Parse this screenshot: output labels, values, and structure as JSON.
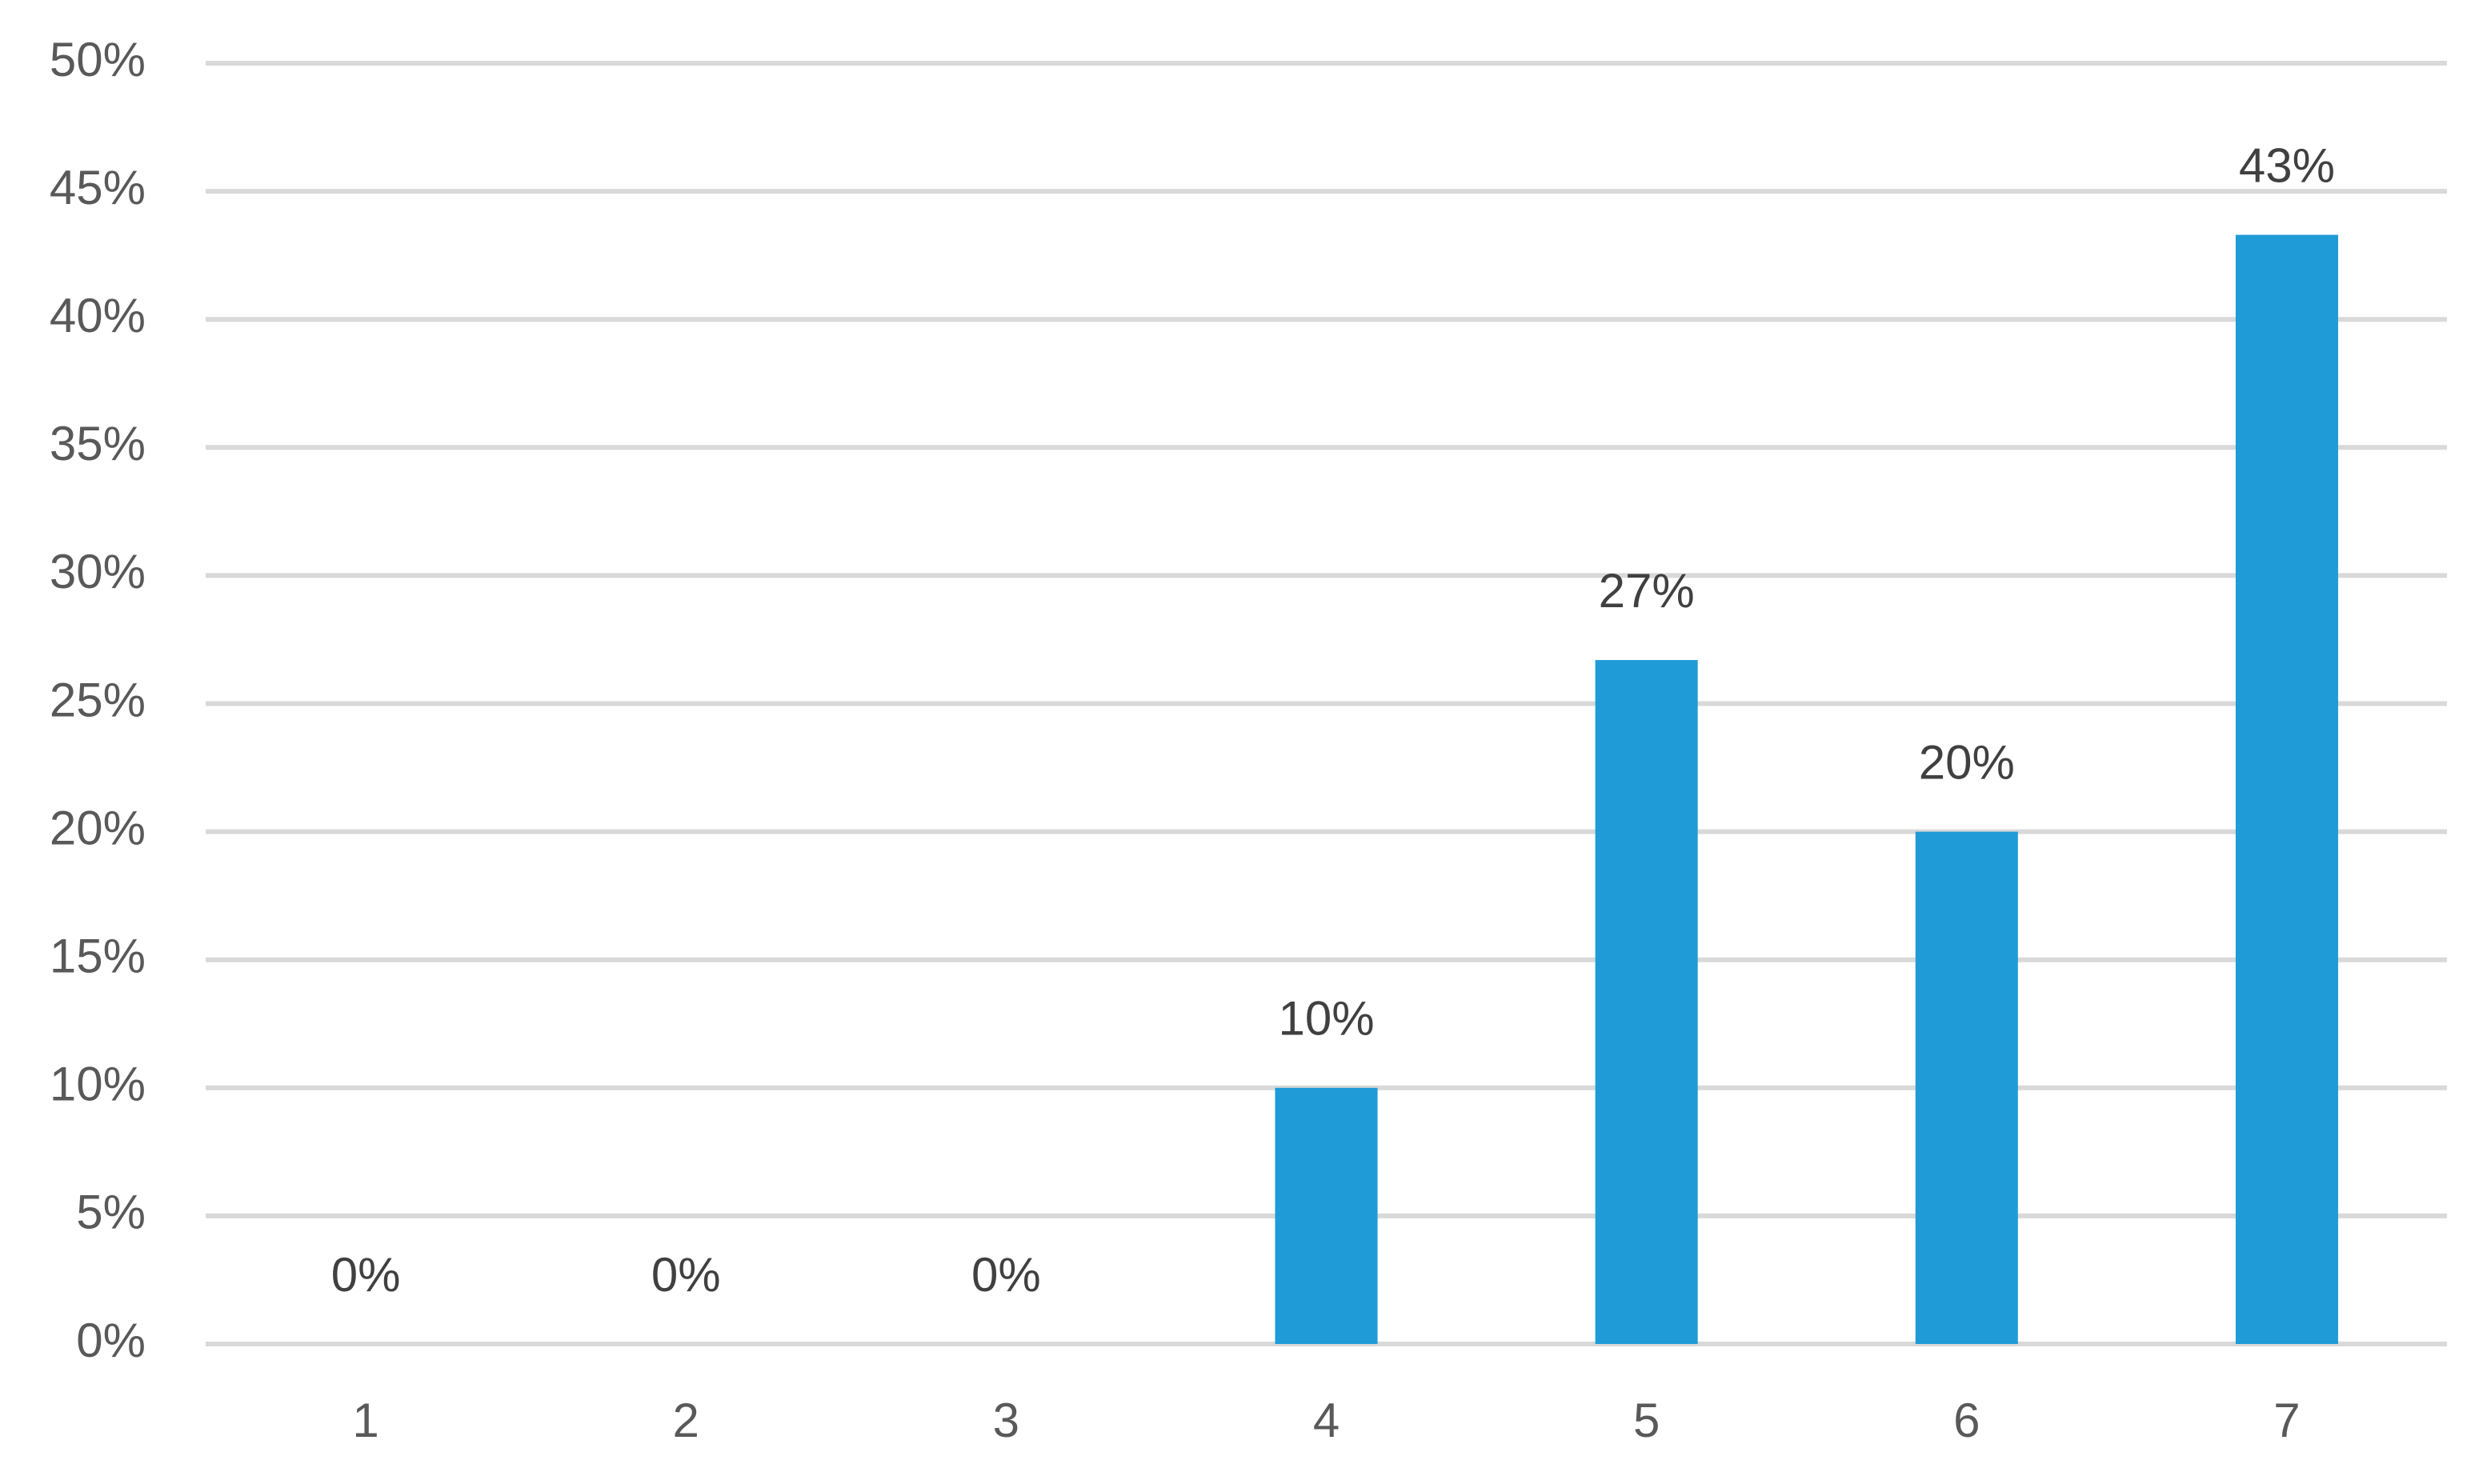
{
  "chart_data": {
    "type": "bar",
    "categories": [
      "1",
      "2",
      "3",
      "4",
      "5",
      "6",
      "7"
    ],
    "values": [
      0,
      0,
      0,
      10,
      26.7,
      20,
      43.3
    ],
    "value_labels": [
      "0%",
      "0%",
      "0%",
      "10%",
      "27%",
      "20%",
      "43%"
    ],
    "color": "#1f9bd7",
    "ylim": [
      0,
      50
    ],
    "yticks": [
      {
        "value": 0,
        "label": "0%"
      },
      {
        "value": 5,
        "label": "5%"
      },
      {
        "value": 10,
        "label": "10%"
      },
      {
        "value": 15,
        "label": "15%"
      },
      {
        "value": 20,
        "label": "20%"
      },
      {
        "value": 25,
        "label": "25%"
      },
      {
        "value": 30,
        "label": "30%"
      },
      {
        "value": 35,
        "label": "35%"
      },
      {
        "value": 40,
        "label": "40%"
      },
      {
        "value": 45,
        "label": "45%"
      },
      {
        "value": 50,
        "label": "50%"
      }
    ],
    "grid": true
  }
}
